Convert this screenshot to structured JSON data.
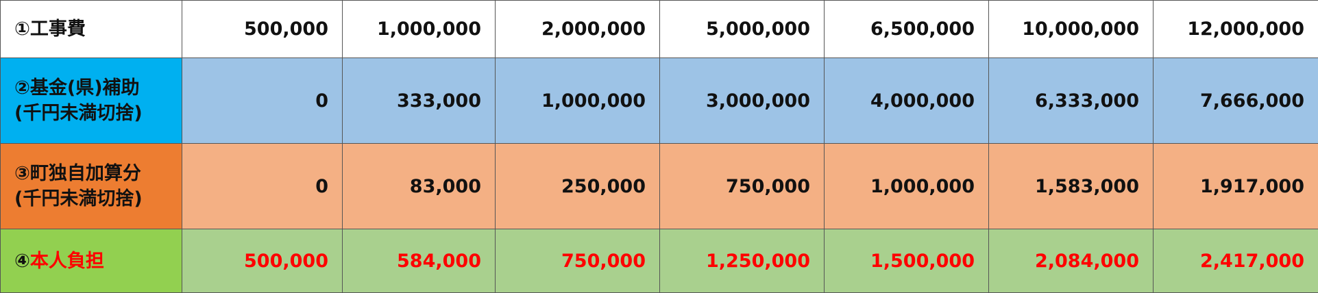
{
  "colors": {
    "row2_label_bg": "#00b0f0",
    "row2_cell_bg": "#9dc3e6",
    "row3_label_bg": "#ed7d31",
    "row3_cell_bg": "#f4b084",
    "row4_label_bg": "#92d050",
    "row4_cell_bg": "#a9d08e",
    "emphasis_text": "#ff0000"
  },
  "rows": [
    {
      "marker": "①",
      "label": "工事費",
      "values": [
        "500,000",
        "1,000,000",
        "2,000,000",
        "5,000,000",
        "6,500,000",
        "10,000,000",
        "12,000,000"
      ]
    },
    {
      "label": "②基金(県)補助",
      "note": "(千円未満切捨)",
      "values": [
        "0",
        "333,000",
        "1,000,000",
        "3,000,000",
        "4,000,000",
        "6,333,000",
        "7,666,000"
      ]
    },
    {
      "label": "③町独自加算分",
      "note": "(千円未満切捨)",
      "values": [
        "0",
        "83,000",
        "250,000",
        "750,000",
        "1,000,000",
        "1,583,000",
        "1,917,000"
      ]
    },
    {
      "marker": "④",
      "label": "本人負担",
      "values": [
        "500,000",
        "584,000",
        "750,000",
        "1,250,000",
        "1,500,000",
        "2,084,000",
        "2,417,000"
      ]
    }
  ]
}
